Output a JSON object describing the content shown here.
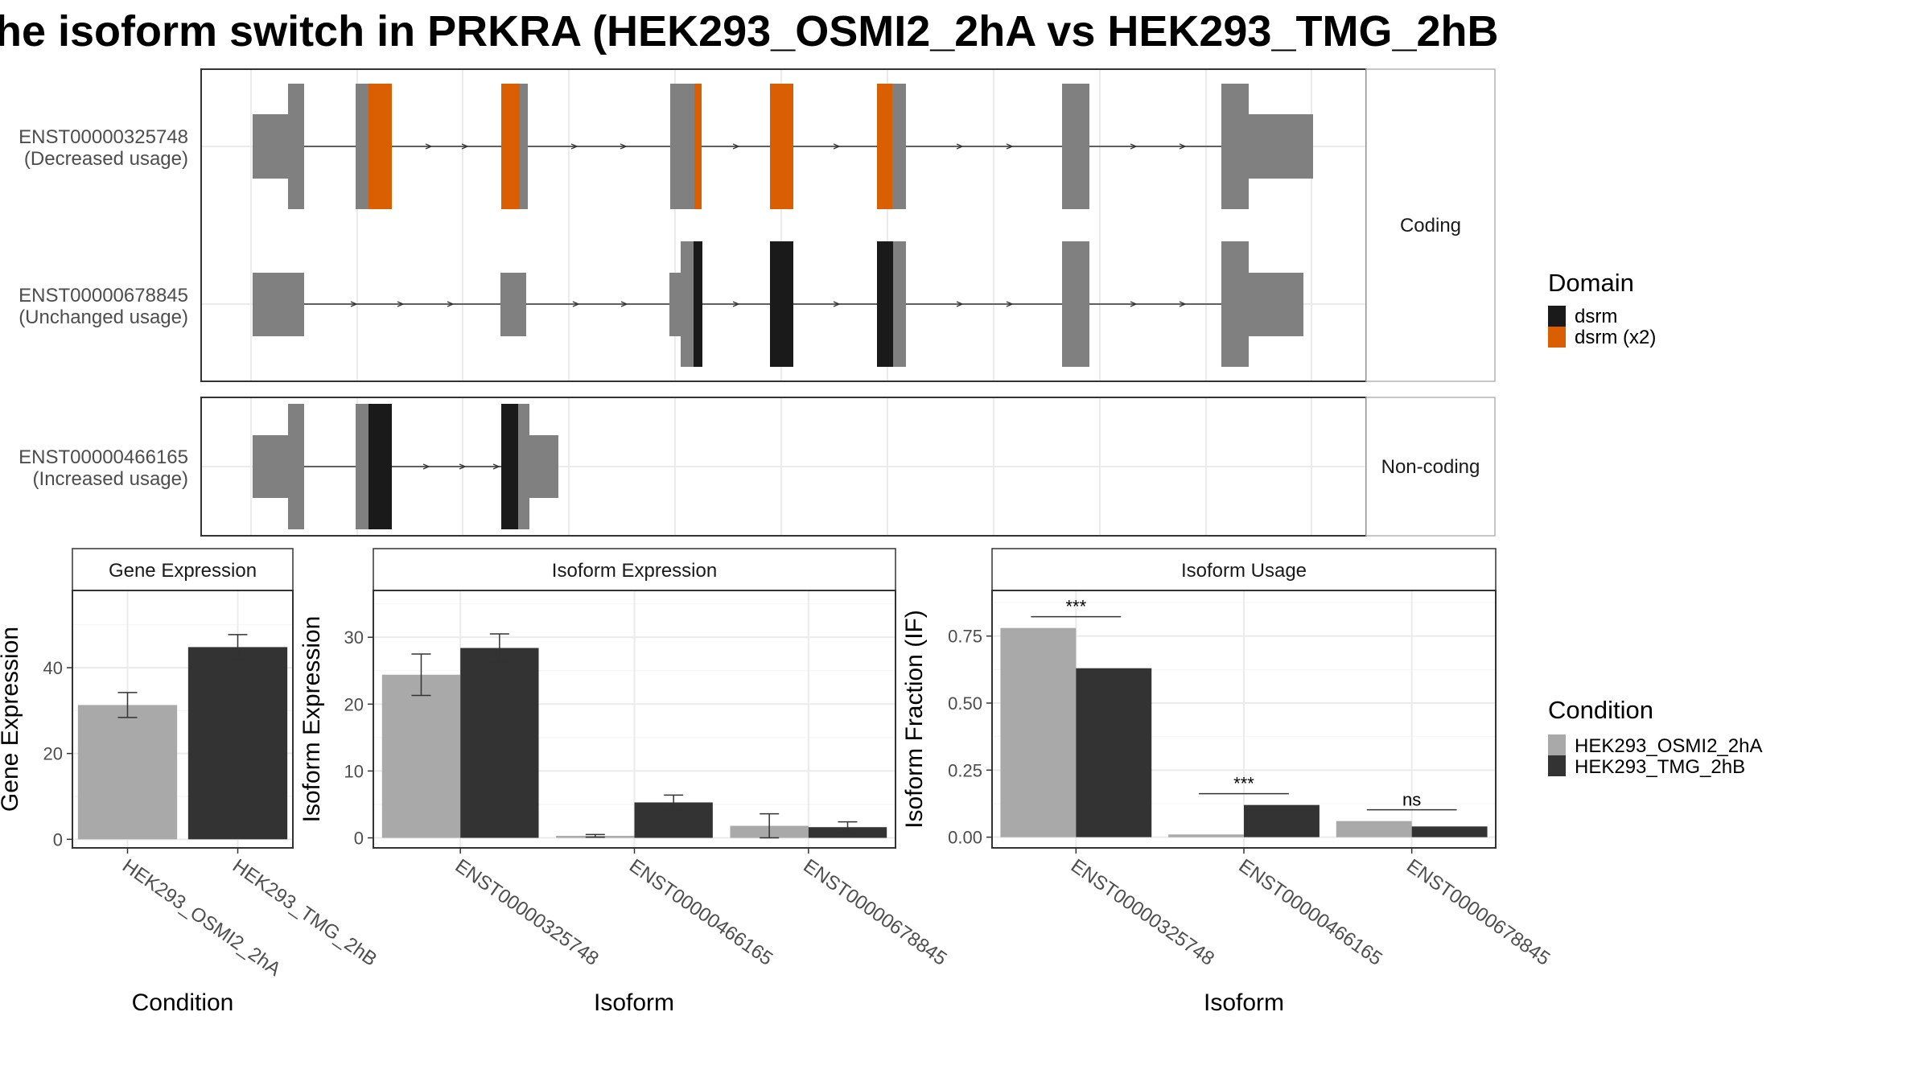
{
  "title": "he isoform switch in PRKRA (HEK293_OSMI2_2hA vs HEK293_TMG_2hB",
  "colors": {
    "exon": "#808080",
    "dsrm": "#1a1a1a",
    "dsrm_x2": "#D95F02",
    "cond1": "#A9A9A9",
    "cond2": "#333333",
    "grid": "#ebebeb",
    "strip_bg": "#ffffff"
  },
  "structure": {
    "facets": [
      "Coding",
      "Non-coding"
    ],
    "transcripts": [
      {
        "id": "ENST00000325748",
        "usage": "(Decreased usage)",
        "facet": "Coding"
      },
      {
        "id": "ENST00000678845",
        "usage": "(Unchanged usage)",
        "facet": "Coding"
      },
      {
        "id": "ENST00000466165",
        "usage": "(Increased usage)",
        "facet": "Non-coding"
      }
    ],
    "legend": {
      "title": "Domain",
      "items": [
        {
          "label": "dsrm",
          "color": "#1a1a1a"
        },
        {
          "label": "dsrm (x2)",
          "color": "#D95F02"
        }
      ]
    }
  },
  "condition_legend": {
    "title": "Condition",
    "items": [
      {
        "label": "HEK293_OSMI2_2hA",
        "color": "#A9A9A9"
      },
      {
        "label": "HEK293_TMG_2hB",
        "color": "#333333"
      }
    ]
  },
  "chart_data": [
    {
      "type": "bar",
      "title": "Gene Expression",
      "xlabel": "Condition",
      "ylabel": "Gene Expression",
      "categories": [
        "HEK293_OSMI2_2hA",
        "HEK293_TMG_2hB"
      ],
      "values": [
        31.3,
        44.8
      ],
      "errors": [
        [
          28.4,
          34.2
        ],
        [
          41.9,
          47.7
        ]
      ],
      "ylim": [
        -2,
        58
      ],
      "yticks": [
        0,
        20,
        40
      ],
      "ytick_labels": [
        "0",
        "20",
        "40"
      ]
    },
    {
      "type": "bar",
      "title": "Isoform Expression",
      "xlabel": "Isoform",
      "ylabel": "Isoform Expression",
      "categories": [
        "ENST00000325748",
        "ENST00000466165",
        "ENST00000678845"
      ],
      "series": [
        {
          "name": "HEK293_OSMI2_2hA",
          "values": [
            24.4,
            0.3,
            1.8
          ],
          "errors": [
            [
              21.3,
              27.5
            ],
            [
              0.1,
              0.5
            ],
            [
              0.0,
              3.6
            ]
          ]
        },
        {
          "name": "HEK293_TMG_2hB",
          "values": [
            28.4,
            5.3,
            1.6
          ],
          "errors": [
            [
              26.3,
              30.5
            ],
            [
              4.2,
              6.4
            ],
            [
              0.8,
              2.4
            ]
          ]
        }
      ],
      "ylim": [
        -1.5,
        37
      ],
      "yticks": [
        0,
        10,
        20,
        30
      ],
      "ytick_labels": [
        "0",
        "10",
        "20",
        "30"
      ]
    },
    {
      "type": "bar",
      "title": "Isoform Usage",
      "xlabel": "Isoform",
      "ylabel": "Isoform Fraction (IF)",
      "categories": [
        "ENST00000325748",
        "ENST00000466165",
        "ENST00000678845"
      ],
      "series": [
        {
          "name": "HEK293_OSMI2_2hA",
          "values": [
            0.78,
            0.01,
            0.06
          ]
        },
        {
          "name": "HEK293_TMG_2hB",
          "values": [
            0.63,
            0.12,
            0.04
          ]
        }
      ],
      "annotations": [
        "***",
        "***",
        "ns"
      ],
      "ylim": [
        -0.04,
        0.92
      ],
      "yticks": [
        0,
        0.25,
        0.5,
        0.75
      ],
      "ytick_labels": [
        "0.00",
        "0.25",
        "0.50",
        "0.75"
      ]
    }
  ]
}
